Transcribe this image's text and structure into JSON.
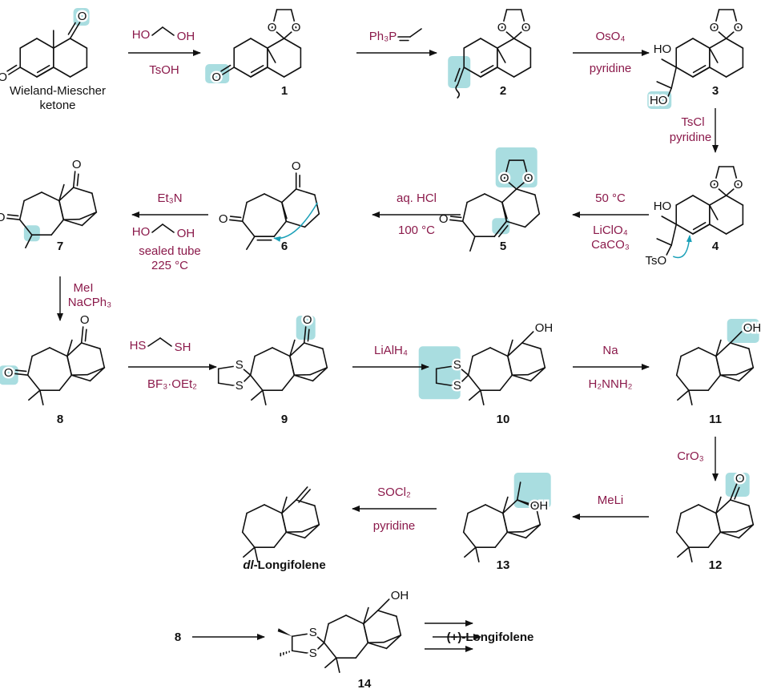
{
  "colors": {
    "reagent": "#8b1a4b",
    "highlight": "#a9dde0",
    "curved_arrow": "#1aa0b8"
  },
  "atoms": {
    "O": "O",
    "OH": "OH",
    "HO": "HO",
    "S": "S",
    "TsO": "TsO"
  },
  "compounds": {
    "wmk_line1": "Wieland-Miescher",
    "wmk_line2": "ketone",
    "c1": "1",
    "c2": "2",
    "c3": "3",
    "c4": "4",
    "c5": "5",
    "c6": "6",
    "c7": "7",
    "c8": "8",
    "c9": "9",
    "c10": "10",
    "c11": "11",
    "c12": "12",
    "c13": "13",
    "c14": "14",
    "dl_prefix": "dl",
    "dl_name": "-Longifolene",
    "start8": "8",
    "plus_longifolene": "(+)-Longifolene"
  },
  "reagents": {
    "step1_diol_left": "HO",
    "step1_diol_right": "OH",
    "step1_acid": "TsOH",
    "step2_ylide": "Ph₃P",
    "step3_top": "OsO₄",
    "step3_bottom": "pyridine",
    "step4_top": "TsCl",
    "step4_bottom": "pyridine",
    "step5_top": "50 °C",
    "step5_b1": "LiClO₄",
    "step5_b2": "CaCO₃",
    "step6_top": "aq. HCl",
    "step6_bottom": "100 °C",
    "step7_top": "Et₃N",
    "step7_diol_left": "HO",
    "step7_diol_right": "OH",
    "step7_b1": "sealed tube",
    "step7_b2": "225 °C",
    "step8_top": "MeI",
    "step8_bottom": "NaCPh₃",
    "step9_dithiol_left": "HS",
    "step9_dithiol_right": "SH",
    "step9_bottom": "BF₃·OEt₂",
    "step10_top": "LiAlH₄",
    "step11_top": "Na",
    "step11_bottom": "H₂NNH₂",
    "step12_top": "CrO₃",
    "step13_top": "MeLi",
    "step14_top": "SOCl₂",
    "step14_bottom": "pyridine"
  }
}
